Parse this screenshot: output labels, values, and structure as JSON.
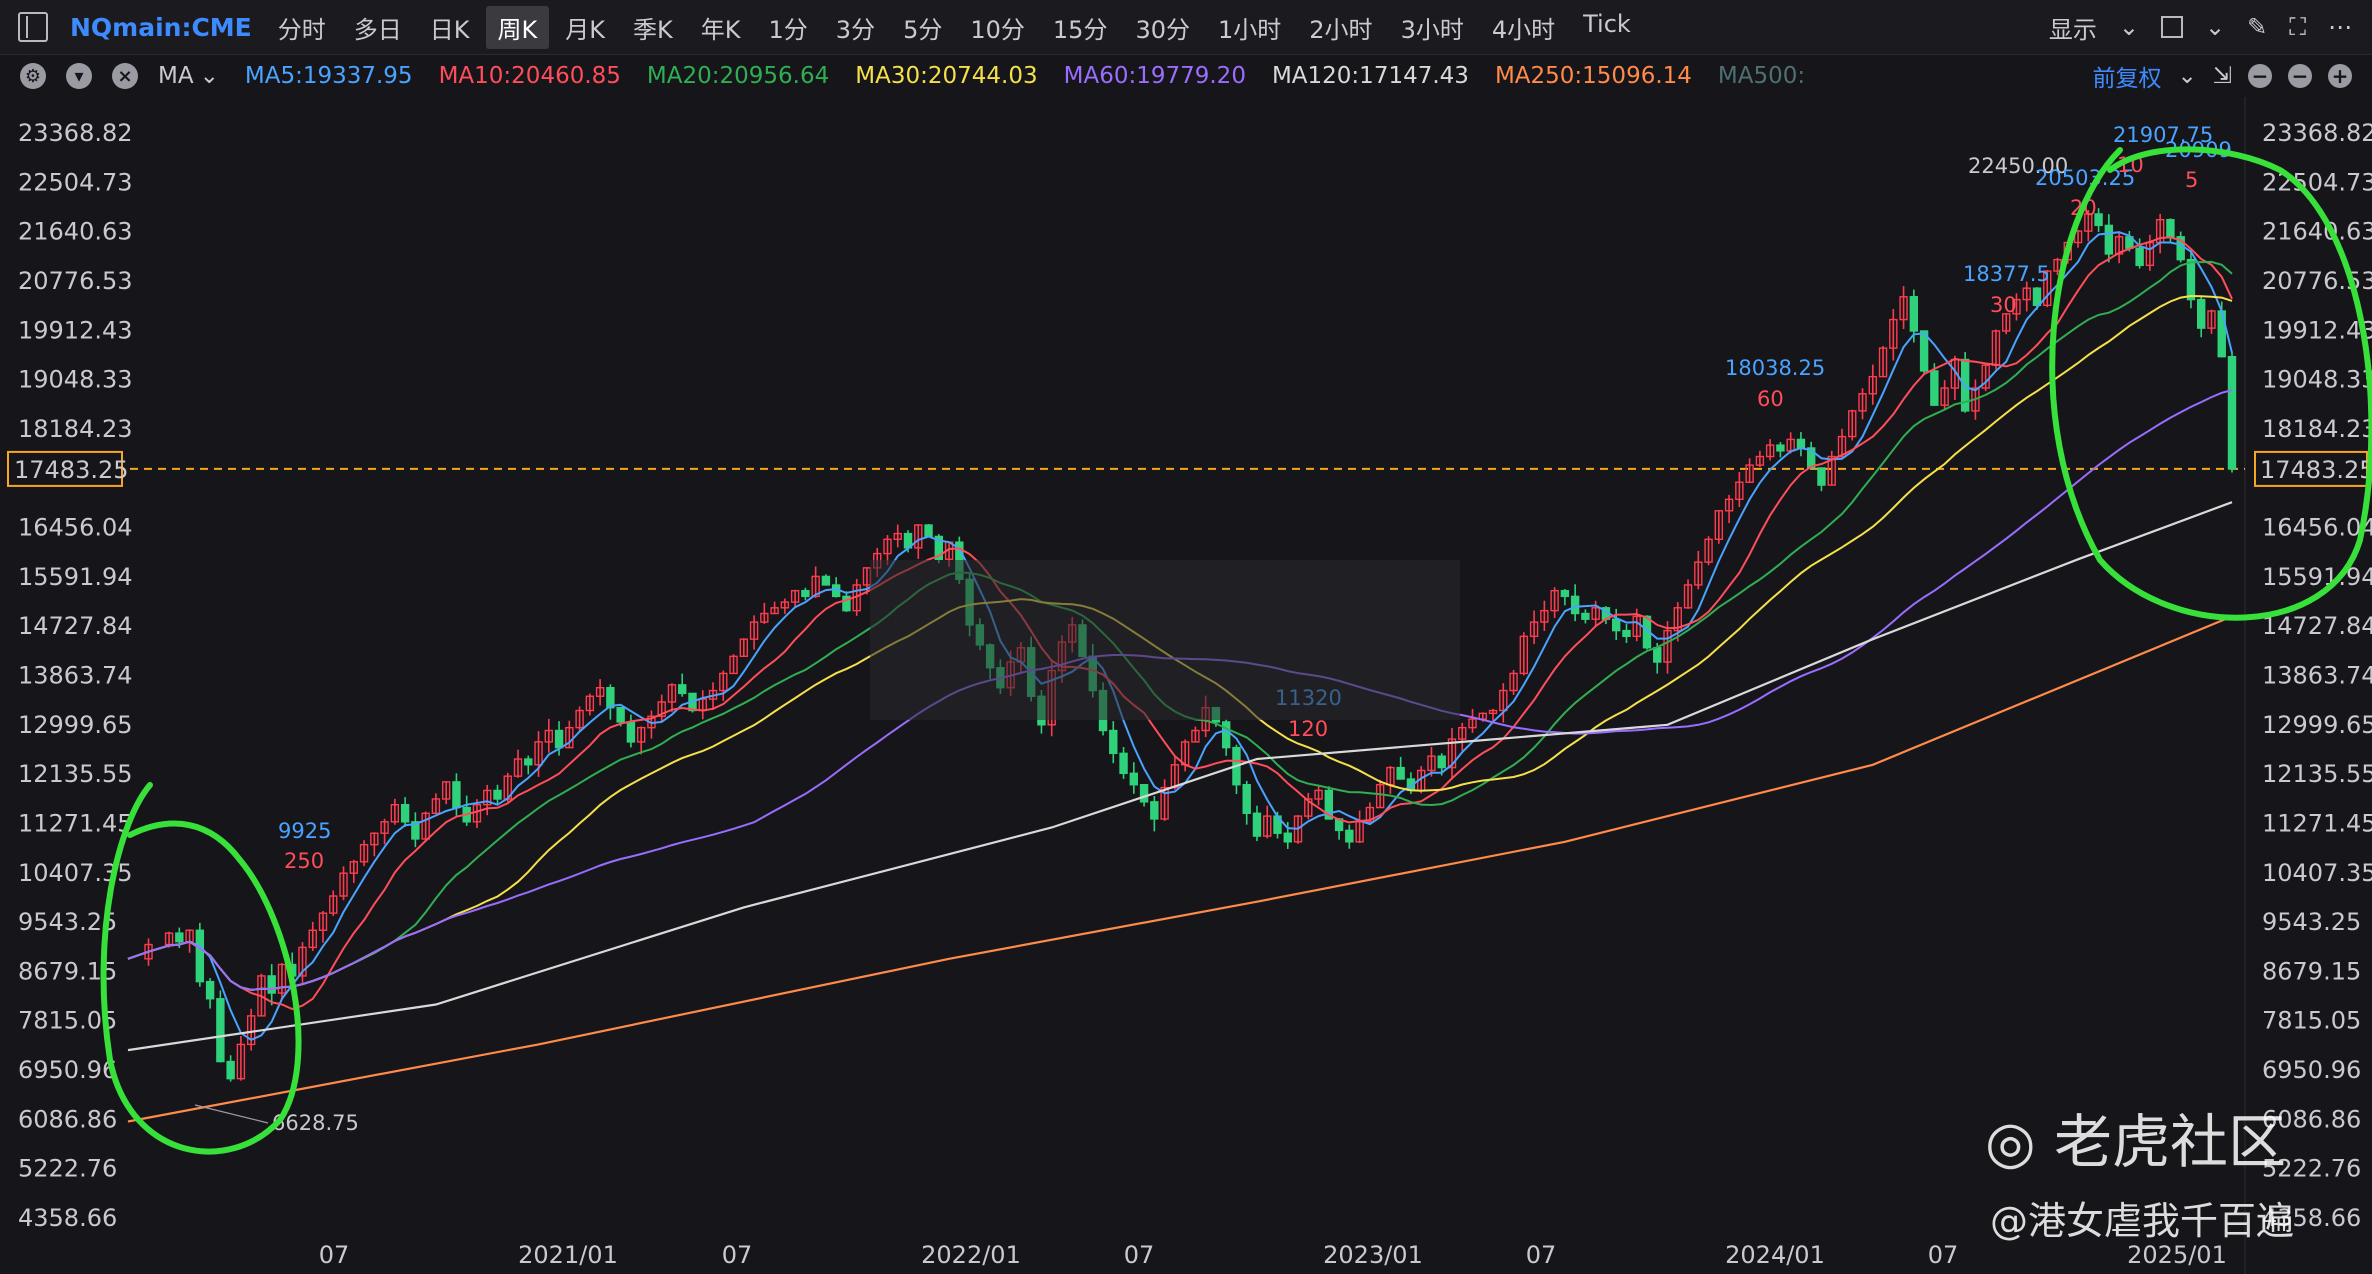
{
  "toolbar": {
    "symbol": "NQmain:CME",
    "periods": [
      "分时",
      "多日",
      "日K",
      "周K",
      "月K",
      "季K",
      "年K",
      "1分",
      "3分",
      "5分",
      "10分",
      "15分",
      "30分",
      "1小时",
      "2小时",
      "3小时",
      "4小时",
      "Tick"
    ],
    "active_period": "周K",
    "display_label": "显示"
  },
  "ma_bar": {
    "label": "MA",
    "adjust_label": "前复权",
    "items": [
      {
        "text": "MA5:19337.95",
        "color": "#4aa3ff"
      },
      {
        "text": "MA10:20460.85",
        "color": "#ff4d5a"
      },
      {
        "text": "MA20:20956.64",
        "color": "#2fae52"
      },
      {
        "text": "MA30:20744.03",
        "color": "#f5e04a"
      },
      {
        "text": "MA60:19779.20",
        "color": "#9a6dff"
      },
      {
        "text": "MA120:17147.43",
        "color": "#d9d9d9"
      },
      {
        "text": "MA250:15096.14",
        "color": "#ff8a4a"
      },
      {
        "text": "MA500:",
        "color": "#4f6f73"
      }
    ]
  },
  "chart_data": {
    "type": "candlestick",
    "period": "weekly",
    "ylim": [
      4358.66,
      23368.82
    ],
    "y_ticks": [
      "23368.82",
      "22504.73",
      "21640.63",
      "20776.53",
      "19912.43",
      "19048.33",
      "18184.23",
      "17483.25",
      "16456.04",
      "15591.94",
      "14727.84",
      "13863.74",
      "12999.65",
      "12135.55",
      "11271.45",
      "10407.35",
      "9543.25",
      "8679.15",
      "7815.05",
      "6950.96",
      "6086.86",
      "5222.76",
      "4358.66"
    ],
    "x_ticks": [
      "07",
      "2021/01",
      "07",
      "2022/01",
      "07",
      "2023/01",
      "07",
      "2024/01",
      "07",
      "2025/01"
    ],
    "last_price": "17483.25",
    "annotations": [
      {
        "label": "6628.75",
        "value": 6628.75
      },
      {
        "label": "9925",
        "value": 9925
      },
      {
        "label": "250",
        "value": 250
      },
      {
        "label": "11320",
        "value": 11320
      },
      {
        "label": "120",
        "value": 120
      },
      {
        "label": "18038.25",
        "value": 18038.25
      },
      {
        "label": "60",
        "value": 60
      },
      {
        "label": "18377.5",
        "value": 18377.5
      },
      {
        "label": "30",
        "value": 30
      },
      {
        "label": "22450.00",
        "value": 22450
      },
      {
        "label": "20503.25",
        "value": 20503.25
      },
      {
        "label": "20",
        "value": 20
      },
      {
        "label": "21907.75",
        "value": 21907.75
      },
      {
        "label": "10",
        "value": 10
      },
      {
        "label": "20909",
        "value": 20909
      },
      {
        "label": "5",
        "value": 5
      }
    ],
    "close_path": [
      [
        0,
        8900
      ],
      [
        2,
        9150
      ],
      [
        4,
        9350
      ],
      [
        5,
        9200
      ],
      [
        6,
        9400
      ],
      [
        7,
        8500
      ],
      [
        8,
        8200
      ],
      [
        9,
        7100
      ],
      [
        10,
        6800
      ],
      [
        11,
        7400
      ],
      [
        12,
        7900
      ],
      [
        13,
        8600
      ],
      [
        14,
        8300
      ],
      [
        15,
        8800
      ],
      [
        16,
        8600
      ],
      [
        17,
        9100
      ],
      [
        18,
        9400
      ],
      [
        19,
        9700
      ],
      [
        20,
        10000
      ],
      [
        21,
        10400
      ],
      [
        22,
        10600
      ],
      [
        23,
        10900
      ],
      [
        24,
        11100
      ],
      [
        25,
        11300
      ],
      [
        26,
        11600
      ],
      [
        27,
        11300
      ],
      [
        28,
        11000
      ],
      [
        29,
        11450
      ],
      [
        30,
        11700
      ],
      [
        31,
        12000
      ],
      [
        32,
        11550
      ],
      [
        33,
        11300
      ],
      [
        34,
        11600
      ],
      [
        35,
        11850
      ],
      [
        36,
        11700
      ],
      [
        37,
        12100
      ],
      [
        38,
        12400
      ],
      [
        39,
        12300
      ],
      [
        40,
        12700
      ],
      [
        41,
        12900
      ],
      [
        42,
        12600
      ],
      [
        43,
        12950
      ],
      [
        44,
        13250
      ],
      [
        45,
        13500
      ],
      [
        46,
        13650
      ],
      [
        47,
        13300
      ],
      [
        48,
        13050
      ],
      [
        49,
        12700
      ],
      [
        50,
        12950
      ],
      [
        51,
        13150
      ],
      [
        52,
        13400
      ],
      [
        53,
        13700
      ],
      [
        54,
        13550
      ],
      [
        55,
        13250
      ],
      [
        56,
        13450
      ],
      [
        57,
        13600
      ],
      [
        58,
        13900
      ],
      [
        59,
        14200
      ],
      [
        60,
        14500
      ],
      [
        61,
        14800
      ],
      [
        62,
        14950
      ],
      [
        63,
        15050
      ],
      [
        64,
        15150
      ],
      [
        65,
        15350
      ],
      [
        66,
        15250
      ],
      [
        67,
        15600
      ],
      [
        68,
        15450
      ],
      [
        69,
        15250
      ],
      [
        70,
        15000
      ],
      [
        71,
        15450
      ],
      [
        72,
        15750
      ],
      [
        73,
        16000
      ],
      [
        74,
        16250
      ],
      [
        75,
        16350
      ],
      [
        76,
        16100
      ],
      [
        77,
        16500
      ],
      [
        78,
        16300
      ],
      [
        79,
        15900
      ],
      [
        80,
        16200
      ],
      [
        81,
        15550
      ],
      [
        82,
        14750
      ],
      [
        83,
        14400
      ],
      [
        84,
        14000
      ],
      [
        85,
        13650
      ],
      [
        86,
        14100
      ],
      [
        87,
        14350
      ],
      [
        88,
        13500
      ],
      [
        89,
        13000
      ],
      [
        90,
        13950
      ],
      [
        91,
        14450
      ],
      [
        92,
        14750
      ],
      [
        93,
        14200
      ],
      [
        94,
        13600
      ],
      [
        95,
        12900
      ],
      [
        96,
        12500
      ],
      [
        97,
        12150
      ],
      [
        98,
        11950
      ],
      [
        99,
        11650
      ],
      [
        100,
        11350
      ],
      [
        101,
        11900
      ],
      [
        102,
        12300
      ],
      [
        103,
        12700
      ],
      [
        104,
        12900
      ],
      [
        105,
        13300
      ],
      [
        106,
        13050
      ],
      [
        107,
        12600
      ],
      [
        108,
        11950
      ],
      [
        109,
        11450
      ],
      [
        110,
        11050
      ],
      [
        111,
        11400
      ],
      [
        112,
        11100
      ],
      [
        113,
        10950
      ],
      [
        114,
        11400
      ],
      [
        115,
        11700
      ],
      [
        116,
        11850
      ],
      [
        117,
        11350
      ],
      [
        118,
        11150
      ],
      [
        119,
        10950
      ],
      [
        120,
        11300
      ],
      [
        121,
        11550
      ],
      [
        122,
        11950
      ],
      [
        123,
        12250
      ],
      [
        124,
        12050
      ],
      [
        125,
        11850
      ],
      [
        126,
        12200
      ],
      [
        127,
        12450
      ],
      [
        128,
        12250
      ],
      [
        129,
        12750
      ],
      [
        130,
        12950
      ],
      [
        131,
        13100
      ],
      [
        132,
        13200
      ],
      [
        133,
        13250
      ],
      [
        134,
        13600
      ],
      [
        135,
        13900
      ],
      [
        136,
        14550
      ],
      [
        137,
        14800
      ],
      [
        138,
        15000
      ],
      [
        139,
        15350
      ],
      [
        140,
        15250
      ],
      [
        141,
        14950
      ],
      [
        142,
        14850
      ],
      [
        143,
        15050
      ],
      [
        144,
        14850
      ],
      [
        145,
        14650
      ],
      [
        146,
        14550
      ],
      [
        147,
        14900
      ],
      [
        148,
        14350
      ],
      [
        149,
        14100
      ],
      [
        150,
        14650
      ],
      [
        151,
        15050
      ],
      [
        152,
        15450
      ],
      [
        153,
        15850
      ],
      [
        154,
        16250
      ],
      [
        155,
        16750
      ],
      [
        156,
        16950
      ],
      [
        157,
        17250
      ],
      [
        158,
        17550
      ],
      [
        159,
        17700
      ],
      [
        160,
        17900
      ],
      [
        161,
        17800
      ],
      [
        162,
        18000
      ],
      [
        163,
        17850
      ],
      [
        164,
        17500
      ],
      [
        165,
        17200
      ],
      [
        166,
        17700
      ],
      [
        167,
        18050
      ],
      [
        168,
        18500
      ],
      [
        169,
        18800
      ],
      [
        170,
        19100
      ],
      [
        171,
        19600
      ],
      [
        172,
        20100
      ],
      [
        173,
        20500
      ],
      [
        174,
        19900
      ],
      [
        175,
        19200
      ],
      [
        176,
        18600
      ],
      [
        177,
        18900
      ],
      [
        178,
        19400
      ],
      [
        179,
        18500
      ],
      [
        180,
        18900
      ],
      [
        181,
        19300
      ],
      [
        182,
        19900
      ],
      [
        183,
        20200
      ],
      [
        184,
        20450
      ],
      [
        185,
        20650
      ],
      [
        186,
        20350
      ],
      [
        187,
        20950
      ],
      [
        188,
        21150
      ],
      [
        189,
        21450
      ],
      [
        190,
        21650
      ],
      [
        191,
        21950
      ],
      [
        192,
        21750
      ],
      [
        193,
        21250
      ],
      [
        194,
        21550
      ],
      [
        195,
        21350
      ],
      [
        196,
        21050
      ],
      [
        197,
        21450
      ],
      [
        198,
        21850
      ],
      [
        199,
        21550
      ],
      [
        200,
        21150
      ],
      [
        201,
        20450
      ],
      [
        202,
        19950
      ],
      [
        203,
        20250
      ],
      [
        204,
        19450
      ],
      [
        205,
        17483
      ]
    ]
  }
}
